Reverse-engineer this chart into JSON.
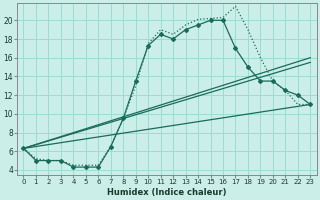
{
  "xlabel": "Humidex (Indice chaleur)",
  "background_color": "#cceee8",
  "grid_color": "#99ddd5",
  "line_color": "#1a6b5a",
  "xlim": [
    -0.5,
    23.5
  ],
  "ylim": [
    3.5,
    21.8
  ],
  "xticks": [
    0,
    1,
    2,
    3,
    4,
    5,
    6,
    7,
    8,
    9,
    10,
    11,
    12,
    13,
    14,
    15,
    16,
    17,
    18,
    19,
    20,
    21,
    22,
    23
  ],
  "yticks": [
    4,
    6,
    8,
    10,
    12,
    14,
    16,
    18,
    20
  ],
  "dotted_x": [
    0,
    1,
    2,
    3,
    4,
    5,
    6,
    7,
    8,
    9,
    10,
    11,
    12,
    13,
    14,
    15,
    16,
    17,
    18,
    19,
    20,
    21,
    22,
    23
  ],
  "dotted_y": [
    6.3,
    5.2,
    5.0,
    5.0,
    4.5,
    4.5,
    4.5,
    6.5,
    9.5,
    13.0,
    17.5,
    19.0,
    18.5,
    19.5,
    20.1,
    20.2,
    20.3,
    21.5,
    19.0,
    16.0,
    13.5,
    12.5,
    11.0,
    11.0
  ],
  "solid_x": [
    0,
    1,
    2,
    3,
    4,
    5,
    6,
    7,
    8,
    9,
    10,
    11,
    12,
    13,
    14,
    15,
    16,
    17,
    18,
    19,
    20,
    21,
    22,
    23
  ],
  "solid_y": [
    6.3,
    5.0,
    5.0,
    5.0,
    4.3,
    4.3,
    4.3,
    6.5,
    9.5,
    13.5,
    17.3,
    18.5,
    18.0,
    19.0,
    19.5,
    20.0,
    20.0,
    17.0,
    15.0,
    13.5,
    13.5,
    12.5,
    12.0,
    11.0
  ],
  "line1_x": [
    0,
    23
  ],
  "line1_y": [
    6.3,
    11.0
  ],
  "line2_x": [
    0,
    23
  ],
  "line2_y": [
    6.3,
    15.5
  ],
  "line3_x": [
    0,
    23
  ],
  "line3_y": [
    6.3,
    16.0
  ]
}
